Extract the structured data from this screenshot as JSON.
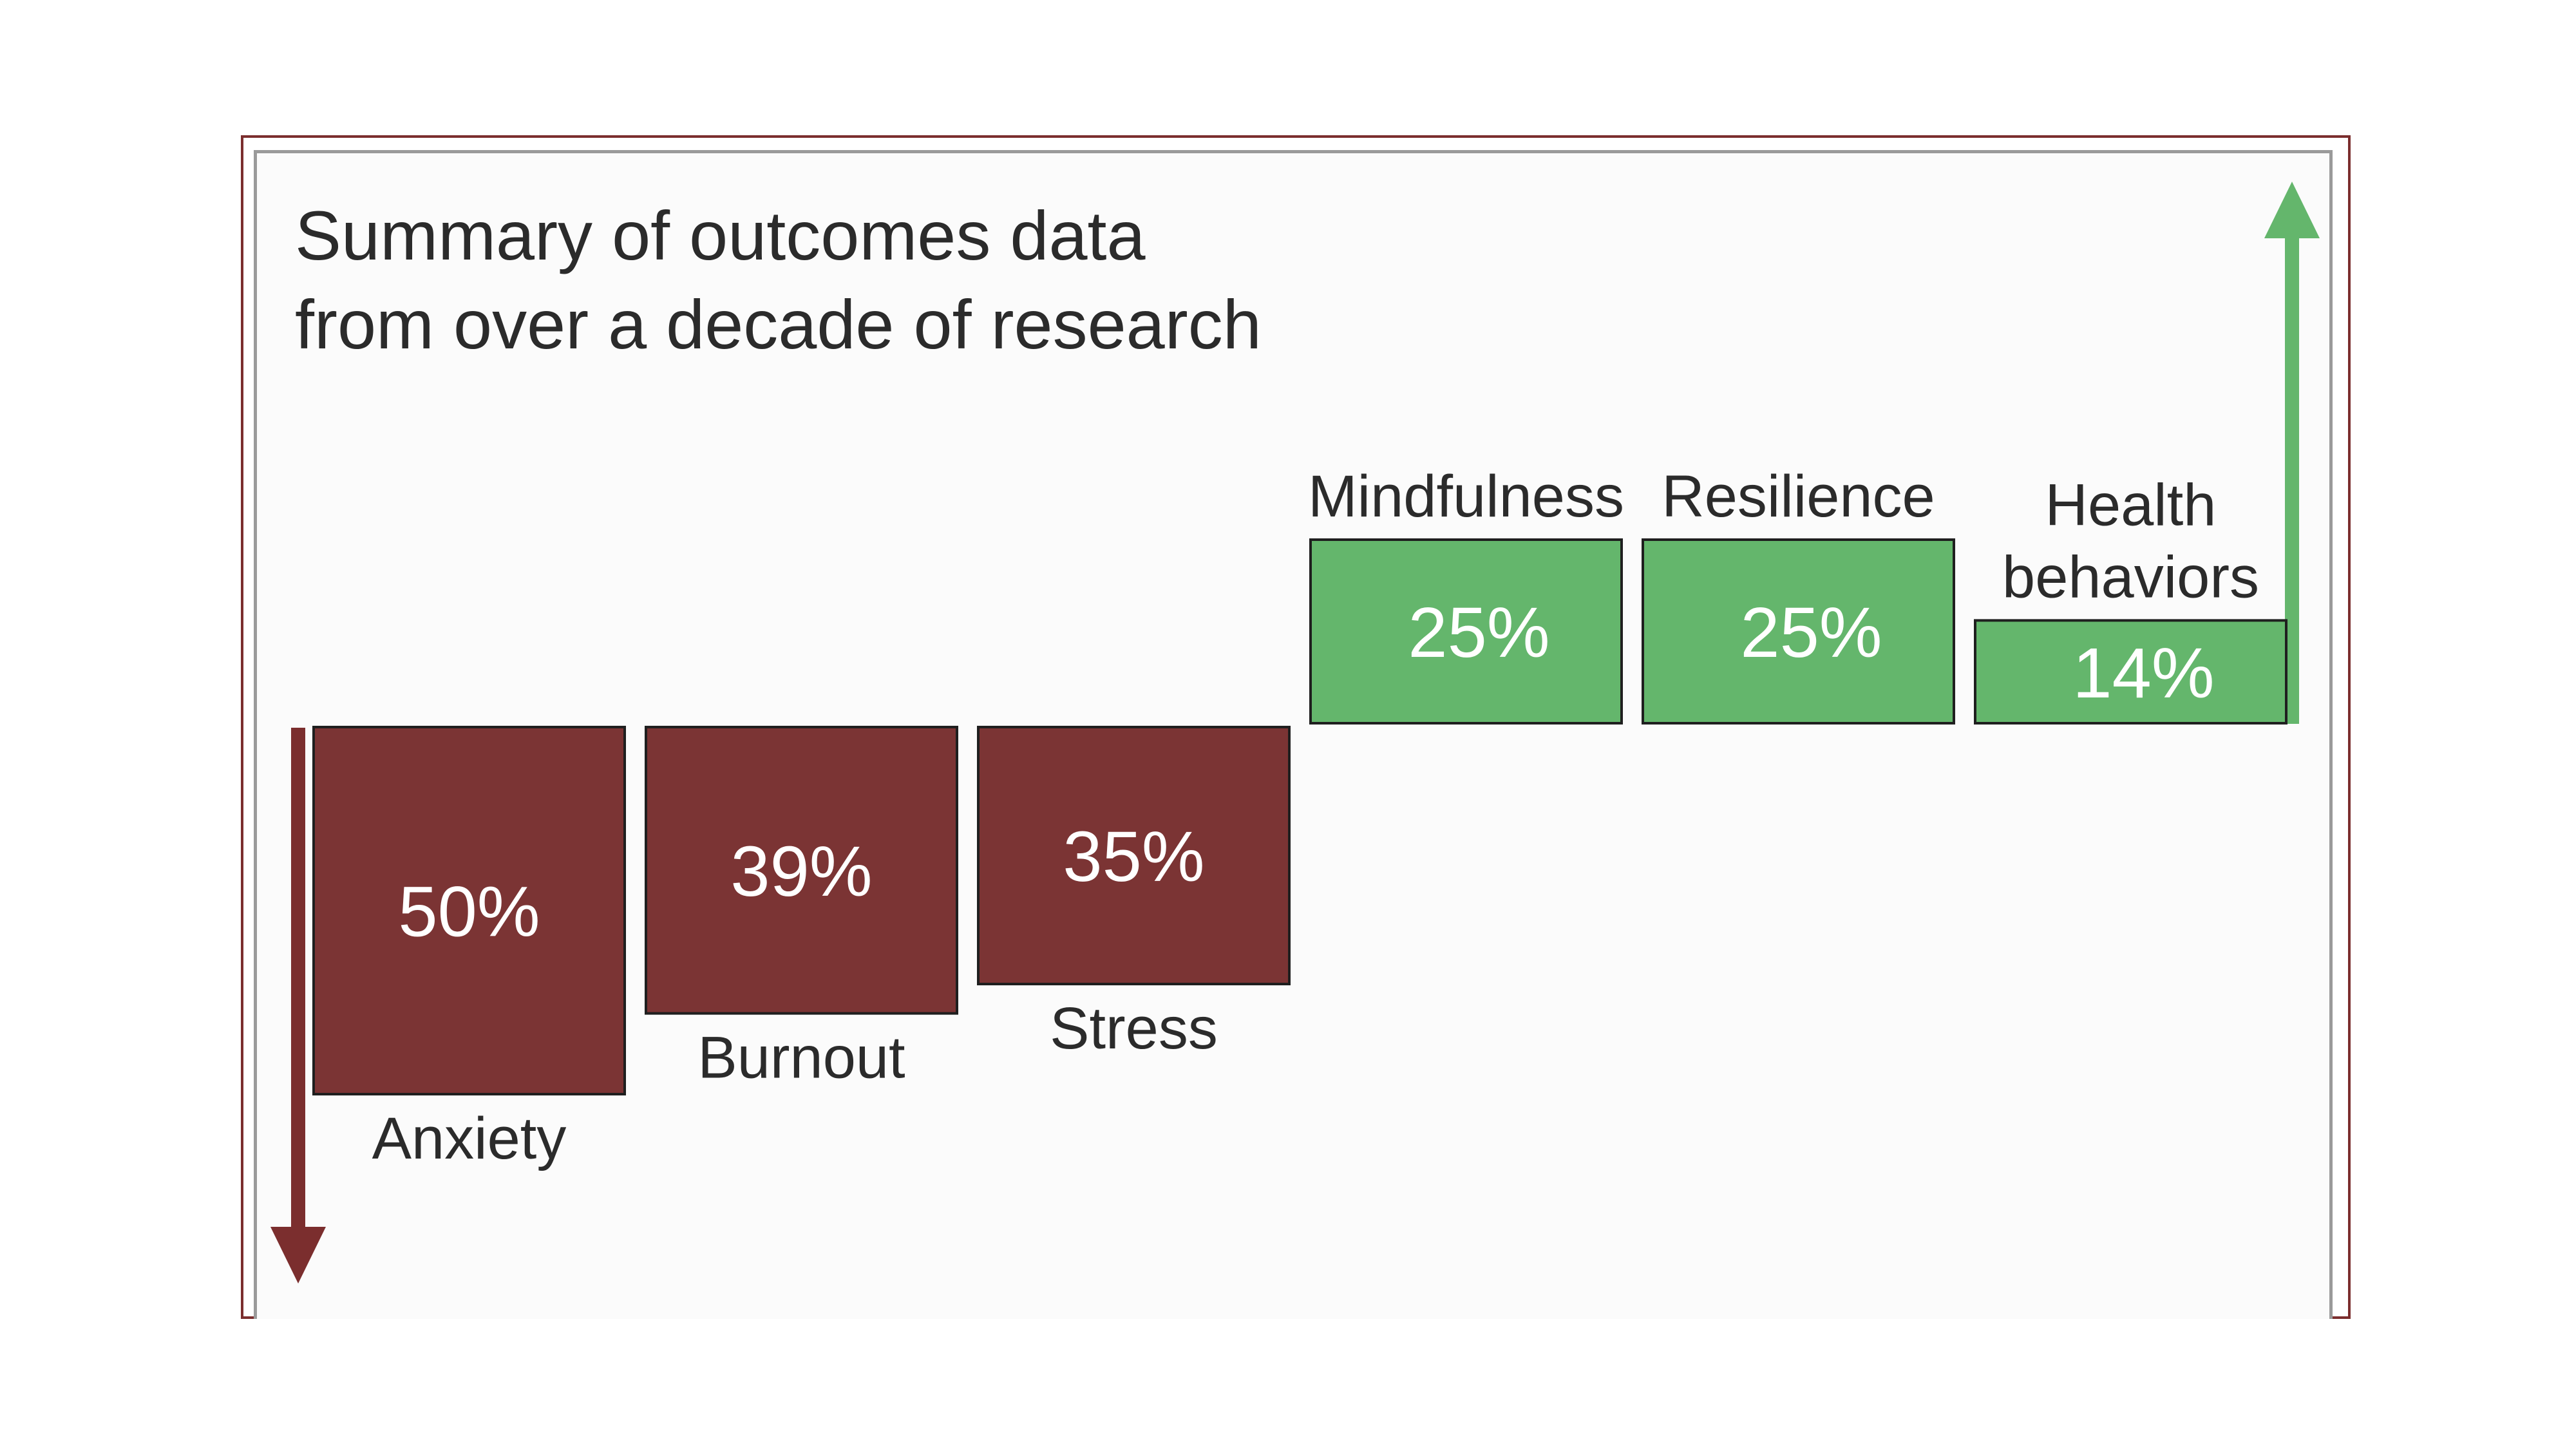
{
  "chart_data": {
    "type": "bar",
    "title_lines": [
      "Summary of outcomes data",
      "from over a decade of research"
    ],
    "categories": [
      {
        "label": "Anxiety",
        "value": 50,
        "value_label": "50%",
        "direction": "decrease"
      },
      {
        "label": "Burnout",
        "value": 39,
        "value_label": "39%",
        "direction": "decrease"
      },
      {
        "label": "Stress",
        "value": 35,
        "value_label": "35%",
        "direction": "decrease"
      },
      {
        "label": "Mindfulness",
        "value": 25,
        "value_label": "25%",
        "direction": "increase"
      },
      {
        "label": "Resilience",
        "value": 25,
        "value_label": "25%",
        "direction": "increase"
      },
      {
        "label": "Health behaviors",
        "label_lines": [
          "Health",
          "behaviors"
        ],
        "value": 14,
        "value_label": "14%",
        "direction": "increase"
      }
    ],
    "colors": {
      "decrease": "#7b3434",
      "increase": "#64b66c",
      "arrow_down": "#7b2e2e",
      "arrow_up": "#64b66c",
      "border": "#7b2e2e",
      "text": "#2b2b2b",
      "value_text": "#ffffff"
    }
  }
}
